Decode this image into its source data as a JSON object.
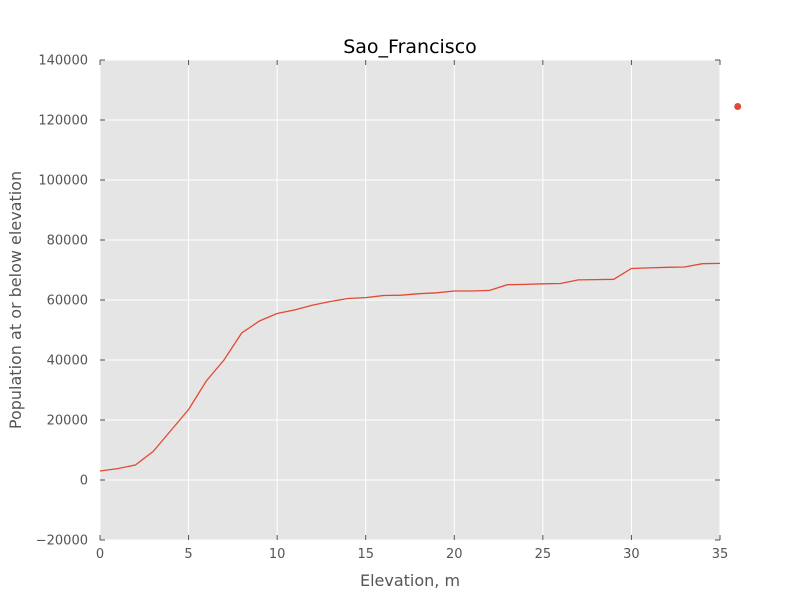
{
  "chart_data": {
    "type": "line",
    "title": "Sao_Francisco",
    "xlabel": "Elevation, m",
    "ylabel": "Population at or below elevation",
    "xlim": [
      0,
      35
    ],
    "ylim": [
      -20000,
      140000
    ],
    "x_ticks": [
      0,
      5,
      10,
      15,
      20,
      25,
      30,
      35
    ],
    "y_ticks": [
      -20000,
      0,
      20000,
      40000,
      60000,
      80000,
      100000,
      120000,
      140000
    ],
    "x_tick_labels": [
      "0",
      "5",
      "10",
      "15",
      "20",
      "25",
      "30",
      "35"
    ],
    "y_tick_labels": [
      "−20000",
      "0",
      "20000",
      "40000",
      "60000",
      "80000",
      "100000",
      "120000",
      "140000"
    ],
    "grid": true,
    "series": [
      {
        "type": "line",
        "color": "#E24A33",
        "x": [
          0,
          1,
          2,
          3,
          4,
          5,
          6,
          7,
          8,
          9,
          10,
          11,
          12,
          13,
          14,
          15,
          16,
          17,
          18,
          19,
          20,
          21,
          22,
          23,
          24,
          25,
          26,
          27,
          28,
          29,
          30,
          31,
          32,
          33,
          34,
          35
        ],
        "y": [
          3000,
          3800,
          5000,
          9500,
          16500,
          23500,
          33000,
          40000,
          49000,
          53000,
          55500,
          56700,
          58300,
          59500,
          60500,
          60800,
          61500,
          61600,
          62100,
          62400,
          63000,
          63000,
          63200,
          65100,
          65200,
          65400,
          65500,
          66700,
          66800,
          66900,
          70500,
          70700,
          70900,
          71000,
          72100,
          72200
        ]
      },
      {
        "type": "scatter",
        "color": "#E24A33",
        "x": [
          36
        ],
        "y": [
          124500
        ]
      }
    ]
  }
}
